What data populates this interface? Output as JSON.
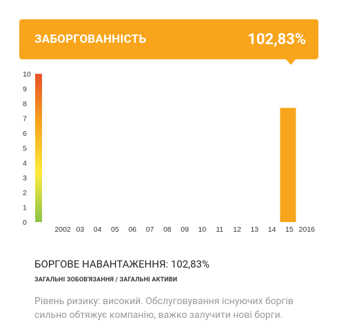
{
  "header": {
    "title": "ЗАБОРГОВАННІСТЬ",
    "value": "102,83%",
    "color": "#F8A51B"
  },
  "chart_data": {
    "type": "bar",
    "categories": [
      "2002",
      "03",
      "04",
      "05",
      "06",
      "07",
      "08",
      "09",
      "10",
      "11",
      "12",
      "13",
      "14",
      "15",
      "2016"
    ],
    "values": [
      null,
      null,
      null,
      null,
      null,
      null,
      null,
      null,
      null,
      null,
      null,
      null,
      null,
      7.7,
      null
    ],
    "ylim": [
      0,
      10
    ],
    "yticks": [
      "0",
      "1",
      "2",
      "3",
      "4",
      "5",
      "6",
      "7",
      "8",
      "9",
      "10"
    ],
    "grid": false,
    "bar_color": "#F8A51B",
    "scale_colors": [
      "#8BC34A",
      "#FFEB3B",
      "#F8A51B",
      "#E8512A"
    ]
  },
  "summary": {
    "title": "БОРГОВЕ НАВАНТАЖЕННЯ: 102,83%",
    "label": "ЗАГАЛЬНІ ЗОБОВ'ЯЗАННЯ / ЗАГАЛЬНІ АКТИВИ",
    "description": "Рівень ризику: високий. Обслуговування існуючих боргів сильно обтяжує компанію, важко залучити нові борги."
  }
}
